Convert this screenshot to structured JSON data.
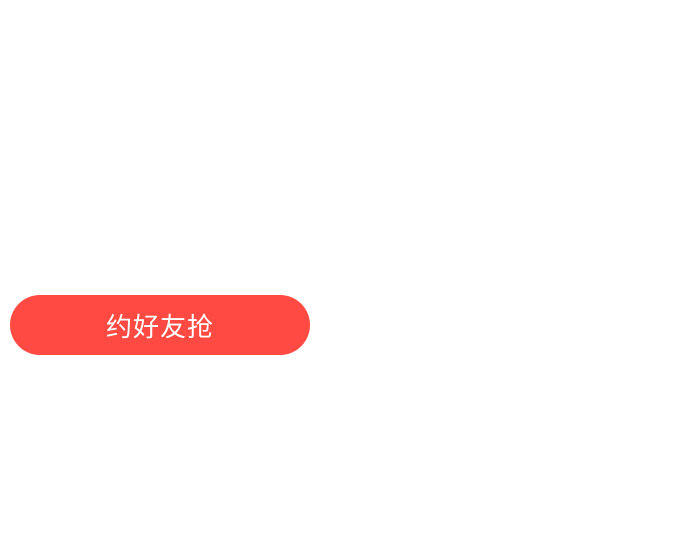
{
  "action_button": {
    "label": "约好友抢"
  },
  "colors": {
    "button_background": "#ff4a44",
    "button_text": "#ffffff",
    "page_background": "#ffffff"
  }
}
